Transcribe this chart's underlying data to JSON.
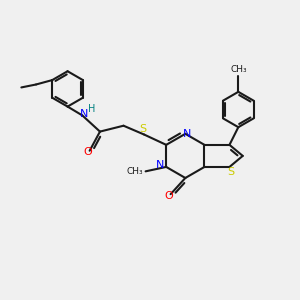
{
  "background_color": "#f0f0f0",
  "bond_color": "#1a1a1a",
  "atom_colors": {
    "N": "#0000ff",
    "O": "#ff0000",
    "S": "#cccc00",
    "H": "#008080",
    "C": "#1a1a1a"
  },
  "figsize": [
    3.0,
    3.0
  ],
  "dpi": 100,
  "xlim": [
    0,
    10
  ],
  "ylim": [
    0,
    10
  ]
}
